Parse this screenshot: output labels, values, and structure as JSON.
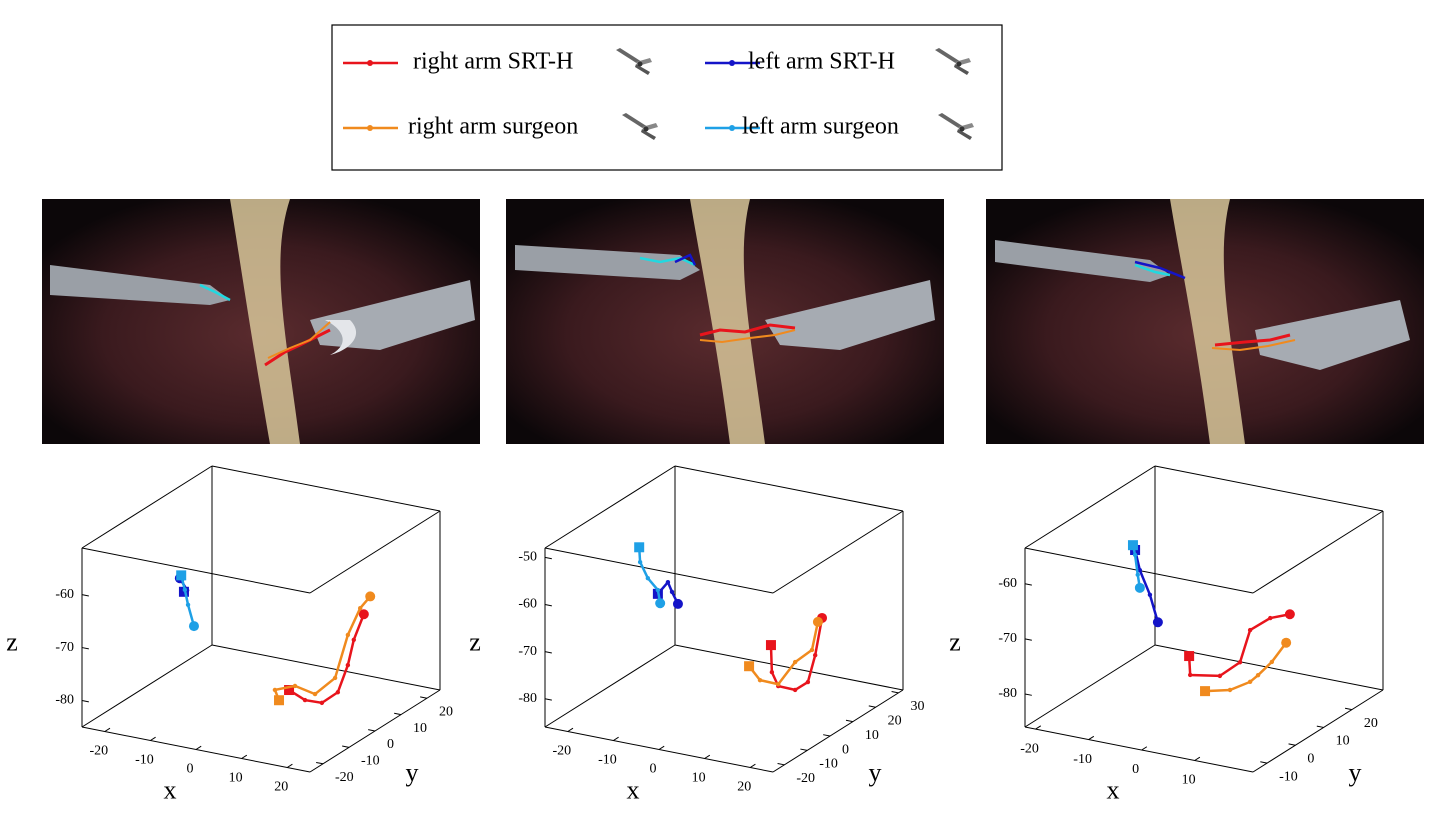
{
  "legend": {
    "entries": [
      {
        "name": "right arm SRT-H",
        "color": "#e8141c"
      },
      {
        "name": "left arm SRT-H",
        "color": "#1414c8"
      },
      {
        "name": "right arm surgeon",
        "color": "#f08a1e"
      },
      {
        "name": "left arm surgeon",
        "color": "#1ea0e6"
      }
    ]
  },
  "chart_data": [
    {
      "type": "line3d",
      "xlabel": "x",
      "ylabel": "y",
      "zlabel": "z",
      "xlim": [
        -25,
        25
      ],
      "ylim": [
        -25,
        25
      ],
      "zlim": [
        -85,
        -51.2
      ],
      "xticks": [
        -20,
        -10,
        0,
        10,
        20
      ],
      "yticks": [
        -20,
        -10,
        0,
        10,
        20
      ],
      "zticks": [
        -80,
        -70,
        -60
      ],
      "series": [
        {
          "color": "#e8141c",
          "x": [
            3.3,
            6.8,
            10.5,
            14.0,
            16.2,
            17.5,
            19.7
          ],
          "y": [
            5,
            5,
            5,
            5,
            5,
            5,
            5
          ],
          "z": [
            -82.5,
            -83.8,
            -83.7,
            -81.1,
            -75.6,
            -70.6,
            -65.4
          ]
        },
        {
          "color": "#1414c8",
          "x": [
            -22.6,
            -21.9,
            -23.5
          ],
          "y": [
            10,
            10,
            10
          ],
          "z": [
            -69.9,
            -69.5,
            -67.5
          ]
        },
        {
          "color": "#f08a1e",
          "x": [
            1.1,
            0.2,
            4.6,
            9.0,
            13.4,
            16.2,
            18.9,
            21.1
          ],
          "y": [
            5,
            5,
            5,
            5,
            5,
            5,
            5,
            5
          ],
          "z": [
            -84.8,
            -83.0,
            -81.5,
            -82.3,
            -78.5,
            -69.9,
            -64.4,
            -61.8
          ]
        },
        {
          "color": "#1ea0e6",
          "x": [
            -23.2,
            -22.4,
            -21.7,
            -20.4
          ],
          "y": [
            10,
            10,
            10,
            10
          ],
          "z": [
            -66.9,
            -69.5,
            -72.2,
            -76.0
          ]
        }
      ]
    },
    {
      "type": "line3d",
      "xlabel": "x",
      "ylabel": "y",
      "zlabel": "z",
      "xlim": [
        -25,
        25
      ],
      "ylim": [
        -25,
        32
      ],
      "zlim": [
        -86,
        -48
      ],
      "xticks": [
        -20,
        -10,
        0,
        10,
        20
      ],
      "yticks": [
        -20,
        -10,
        0,
        10,
        20,
        30
      ],
      "zticks": [
        -80,
        -70,
        -60,
        -50
      ],
      "series": [
        {
          "color": "#e8141c",
          "x": [
            16.0,
            16.2,
            17.6,
            21.3,
            24.1,
            25.7,
            27.2
          ],
          "y": [
            -7.9,
            -7.9,
            -7.9,
            -7.9,
            -7.9,
            -7.9,
            -7.9
          ],
          "z": [
            -66.0,
            -71.7,
            -74.4,
            -74.5,
            -72.3,
            -66.3,
            -58.1
          ]
        },
        {
          "color": "#1414c8",
          "x": [
            -20.2,
            -18.0,
            -17.1,
            -15.8
          ],
          "y": [
            14.9,
            14.9,
            14.9,
            14.9
          ],
          "z": [
            -69.0,
            -66.1,
            -68.0,
            -70.3
          ]
        },
        {
          "color": "#f08a1e",
          "x": [
            11.2,
            13.6,
            17.6,
            21.3,
            25.0,
            26.3
          ],
          "y": [
            -7.9,
            -7.9,
            -7.9,
            -7.9,
            -7.9,
            -7.9
          ],
          "z": [
            -71.4,
            -73.9,
            -74.0,
            -68.6,
            -65.3,
            -59.1
          ]
        },
        {
          "color": "#1ea0e6",
          "x": [
            -24.3,
            -24.1,
            -22.4,
            -20.2,
            -19.7
          ],
          "y": [
            14.9,
            14.9,
            14.9,
            14.9,
            14.9
          ],
          "z": [
            -59.9,
            -63.0,
            -66.1,
            -68.2,
            -70.9
          ]
        }
      ]
    },
    {
      "type": "line3d",
      "xlabel": "x",
      "ylabel": "y",
      "zlabel": "z",
      "xlim": [
        -22,
        21
      ],
      "ylim": [
        -15,
        31
      ],
      "zlim": [
        -86,
        -53.5
      ],
      "xticks": [
        -20,
        -10,
        0,
        10
      ],
      "yticks": [
        -10,
        0,
        10,
        20
      ],
      "zticks": [
        -80,
        -70,
        -60
      ],
      "series": [
        {
          "color": "#e8141c",
          "x": [
            1.6,
            1.8,
            7.4,
            11.2,
            13.1,
            16.9,
            20.6
          ],
          "y": [
            -1.2,
            -1.2,
            -1.2,
            -1.2,
            -1.2,
            -1.2,
            -1.2
          ],
          "z": [
            -73.1,
            -76.5,
            -75.6,
            -72.4,
            -66.2,
            -63.3,
            -61.9
          ]
        },
        {
          "color": "#1414c8",
          "x": [
            -18.4,
            -17.5,
            -15.6,
            -14.1
          ],
          "y": [
            17.2,
            17.2,
            17.2,
            17.2
          ],
          "z": [
            -63.6,
            -67.1,
            -71.2,
            -75.9
          ]
        },
        {
          "color": "#f08a1e",
          "x": [
            4.6,
            9.3,
            13.1,
            14.6,
            17.2,
            19.9
          ],
          "y": [
            -1.2,
            -1.2,
            -1.2,
            -1.2,
            -1.2,
            -1.2
          ],
          "z": [
            -78.9,
            -77.8,
            -75.6,
            -74.1,
            -71.2,
            -67.2
          ]
        },
        {
          "color": "#1ea0e6",
          "x": [
            -18.8,
            -18.4,
            -17.9,
            -17.5
          ],
          "y": [
            17.2,
            17.2,
            17.2,
            17.2
          ],
          "z": [
            -62.8,
            -64.5,
            -68.0,
            -70.3
          ]
        }
      ]
    }
  ]
}
